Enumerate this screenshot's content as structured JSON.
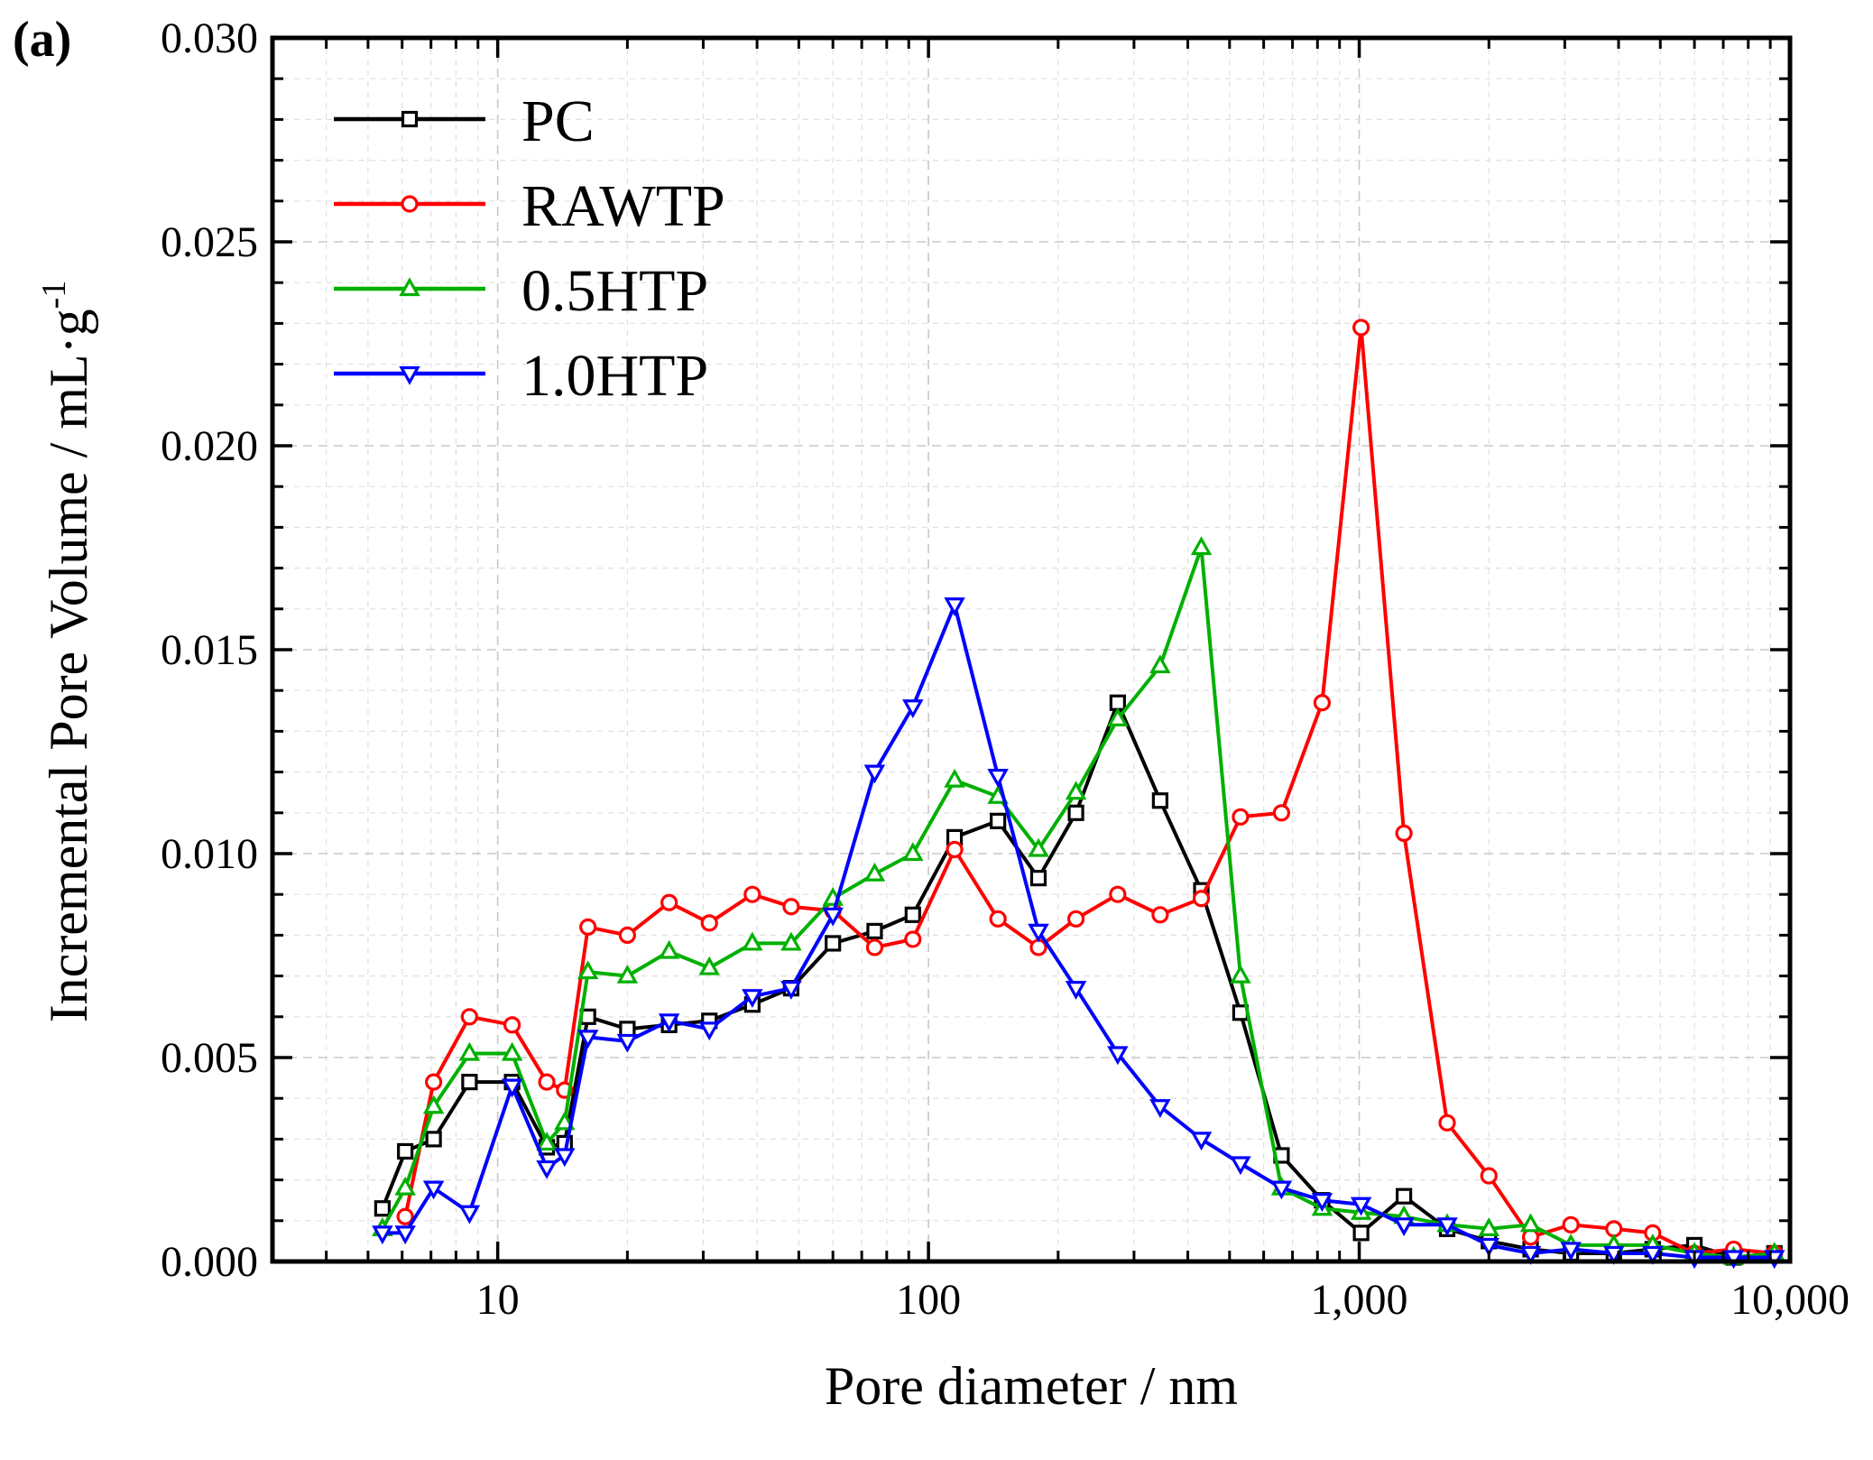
{
  "chart_data": {
    "type": "line",
    "panel_label": "(a)",
    "xlabel": "Pore diameter / nm",
    "ylabel_main": "Incremental Pore Volume / mL·g",
    "ylabel_sup": "-1",
    "xscale": "log",
    "xlim": [
      3,
      10000
    ],
    "ylim": [
      0,
      0.03
    ],
    "grid": true,
    "legend_position": "top-left",
    "x_ticks": [
      {
        "value": 10,
        "label": "10"
      },
      {
        "value": 100,
        "label": "100"
      },
      {
        "value": 1000,
        "label": "1,000"
      },
      {
        "value": 10000,
        "label": "10,000"
      }
    ],
    "y_ticks": [
      {
        "value": 0.0,
        "label": "0.000"
      },
      {
        "value": 0.005,
        "label": "0.005"
      },
      {
        "value": 0.01,
        "label": "0.010"
      },
      {
        "value": 0.015,
        "label": "0.015"
      },
      {
        "value": 0.02,
        "label": "0.020"
      },
      {
        "value": 0.025,
        "label": "0.025"
      },
      {
        "value": 0.03,
        "label": "0.030"
      }
    ],
    "series": [
      {
        "name": "PC",
        "color": "#000000",
        "marker": "square",
        "x": [
          5.4,
          6.1,
          7.1,
          8.6,
          10.8,
          13.0,
          14.3,
          16.2,
          20.0,
          25.0,
          31.0,
          39.0,
          48.0,
          60.0,
          75.0,
          92.0,
          115.0,
          145.0,
          180.0,
          220.0,
          275.0,
          345.0,
          430.0,
          530.0,
          660.0,
          820.0,
          1010.0,
          1270.0,
          1600.0,
          2000.0,
          2500.0,
          3100.0,
          3900.0,
          4800.0,
          6000.0,
          7400.0,
          9200.0
        ],
        "y": [
          0.0013,
          0.0027,
          0.003,
          0.0044,
          0.0044,
          0.0028,
          0.0029,
          0.006,
          0.0057,
          0.0058,
          0.0059,
          0.0063,
          0.0067,
          0.0078,
          0.0081,
          0.0085,
          0.0104,
          0.0108,
          0.0094,
          0.011,
          0.0137,
          0.0113,
          0.0091,
          0.0061,
          0.0026,
          0.0015,
          0.0007,
          0.0016,
          0.0008,
          0.0005,
          0.0003,
          0.0002,
          0.0002,
          0.0003,
          0.0004,
          0.0001,
          0.0002
        ]
      },
      {
        "name": "RAWTP",
        "color": "#ff0000",
        "marker": "circle",
        "x": [
          6.1,
          7.1,
          8.6,
          10.8,
          13.0,
          14.3,
          16.2,
          20.0,
          25.0,
          31.0,
          39.0,
          48.0,
          60.0,
          75.0,
          92.0,
          115.0,
          145.0,
          180.0,
          220.0,
          275.0,
          345.0,
          430.0,
          530.0,
          660.0,
          820.0,
          1010.0,
          1270.0,
          1600.0,
          2000.0,
          2500.0,
          3100.0,
          3900.0,
          4800.0,
          6000.0,
          7400.0,
          9200.0
        ],
        "y": [
          0.0011,
          0.0044,
          0.006,
          0.0058,
          0.0044,
          0.0042,
          0.0082,
          0.008,
          0.0088,
          0.0083,
          0.009,
          0.0087,
          0.0086,
          0.0077,
          0.0079,
          0.0101,
          0.0084,
          0.0077,
          0.0084,
          0.009,
          0.0085,
          0.0089,
          0.0109,
          0.011,
          0.0137,
          0.0229,
          0.0105,
          0.0034,
          0.0021,
          0.0006,
          0.0009,
          0.0008,
          0.0007,
          0.0002,
          0.0003,
          0.0002
        ]
      },
      {
        "name": "0.5HTP",
        "color": "#00b000",
        "marker": "triangle-up",
        "x": [
          5.4,
          6.1,
          7.1,
          8.6,
          10.8,
          13.0,
          14.3,
          16.2,
          20.0,
          25.0,
          31.0,
          39.0,
          48.0,
          60.0,
          75.0,
          92.0,
          115.0,
          145.0,
          180.0,
          220.0,
          275.0,
          345.0,
          430.0,
          530.0,
          660.0,
          820.0,
          1010.0,
          1270.0,
          1600.0,
          2000.0,
          2500.0,
          3100.0,
          3900.0,
          4800.0,
          6000.0,
          7400.0,
          9200.0
        ],
        "y": [
          0.0008,
          0.0018,
          0.0038,
          0.0051,
          0.0051,
          0.0029,
          0.0034,
          0.0071,
          0.007,
          0.0076,
          0.0072,
          0.0078,
          0.0078,
          0.0089,
          0.0095,
          0.01,
          0.0118,
          0.0114,
          0.0101,
          0.0115,
          0.0133,
          0.0146,
          0.0175,
          0.007,
          0.0018,
          0.0013,
          0.0012,
          0.0011,
          0.0009,
          0.0008,
          0.0009,
          0.0004,
          0.0004,
          0.0004,
          0.0002,
          0.0001,
          0.0002
        ]
      },
      {
        "name": "1.0HTP",
        "color": "#0000ff",
        "marker": "triangle-down",
        "x": [
          5.4,
          6.1,
          7.1,
          8.6,
          10.8,
          13.0,
          14.3,
          16.2,
          20.0,
          25.0,
          31.0,
          39.0,
          48.0,
          60.0,
          75.0,
          92.0,
          115.0,
          145.0,
          180.0,
          220.0,
          275.0,
          345.0,
          430.0,
          530.0,
          660.0,
          820.0,
          1010.0,
          1270.0,
          1600.0,
          2000.0,
          2500.0,
          3100.0,
          3900.0,
          4800.0,
          6000.0,
          7400.0,
          9200.0
        ],
        "y": [
          0.0007,
          0.0007,
          0.0018,
          0.0012,
          0.0043,
          0.0023,
          0.0026,
          0.0055,
          0.0054,
          0.0059,
          0.0057,
          0.0065,
          0.0067,
          0.0085,
          0.012,
          0.0136,
          0.0161,
          0.0119,
          0.0081,
          0.0067,
          0.0051,
          0.0038,
          0.003,
          0.0024,
          0.0018,
          0.0015,
          0.0014,
          0.0009,
          0.0009,
          0.0004,
          0.0002,
          0.0003,
          0.0002,
          0.0002,
          0.0001,
          0.0001,
          0.0001
        ]
      }
    ]
  }
}
